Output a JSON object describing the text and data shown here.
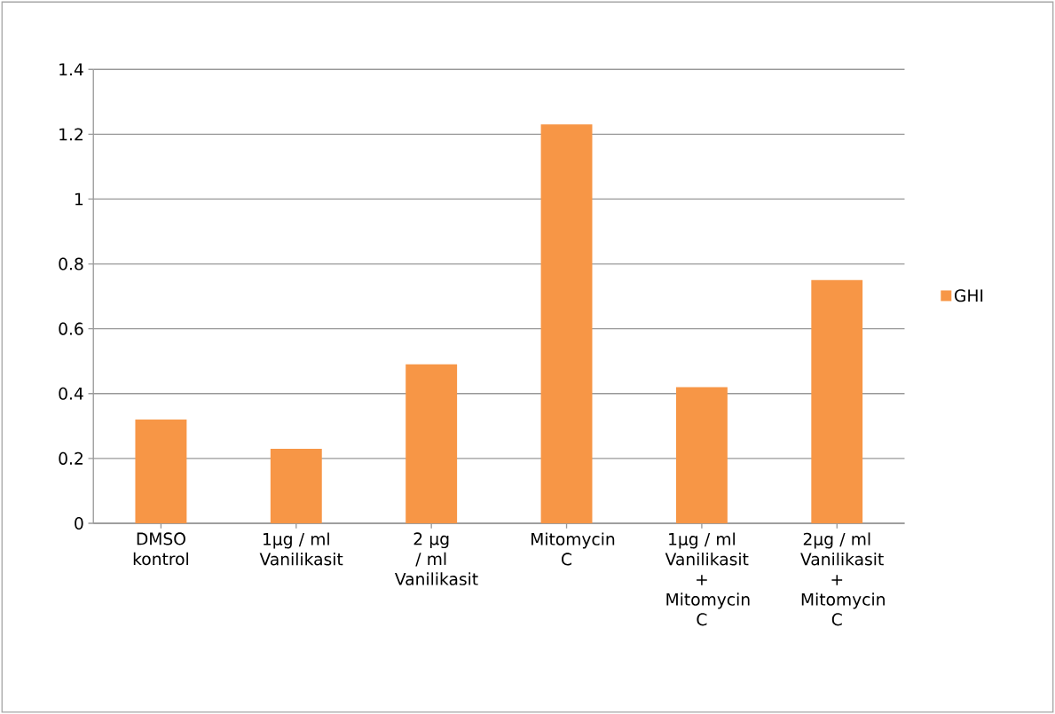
{
  "chart_data": {
    "type": "bar",
    "categories": [
      "DMSO kontrol",
      "1µg / ml Vanilikasit",
      "2 µg / ml Vanilikasit",
      "Mitomycin C",
      "1µg / ml Vanilikasit + Mitomycin C",
      "2µg / ml Vanilikasit + Mitomycin C"
    ],
    "series": [
      {
        "name": "GHI",
        "color": "#f79646",
        "values": [
          0.32,
          0.23,
          0.49,
          1.23,
          0.42,
          0.75
        ]
      }
    ],
    "ylim": [
      0,
      1.4
    ],
    "yticks": [
      0,
      0.2,
      0.4,
      0.6,
      0.8,
      1,
      1.2,
      1.4
    ],
    "grid": "y",
    "legend": "right"
  }
}
